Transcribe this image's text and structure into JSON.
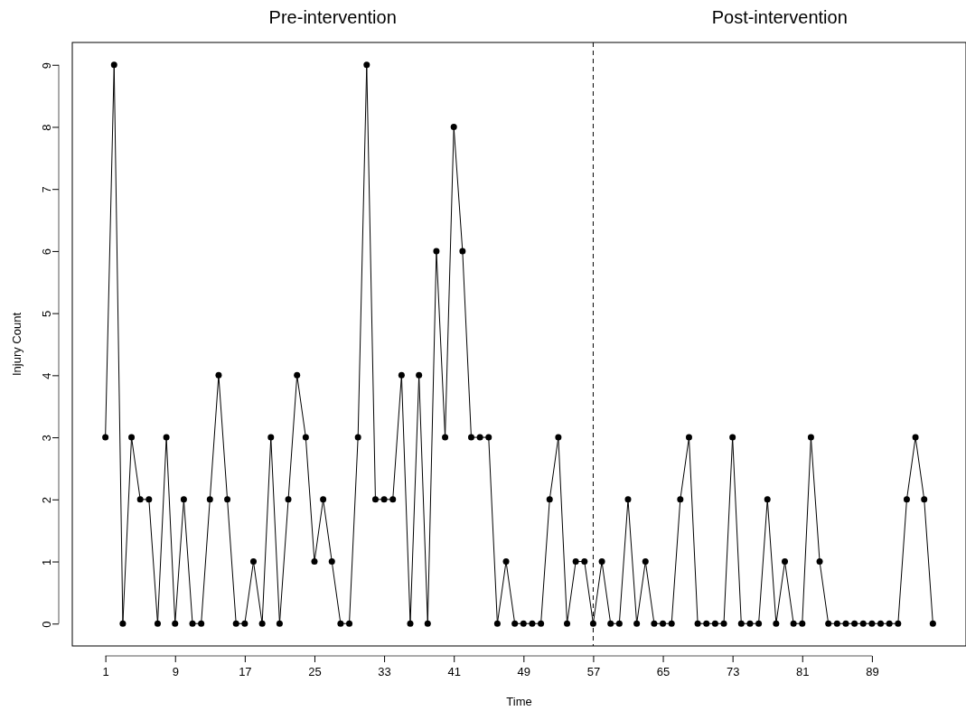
{
  "chart_data": {
    "type": "line",
    "xlabel": "Time",
    "ylabel": "Injury Count",
    "x": [
      1,
      2,
      3,
      4,
      5,
      6,
      7,
      8,
      9,
      10,
      11,
      12,
      13,
      14,
      15,
      16,
      17,
      18,
      19,
      20,
      21,
      22,
      23,
      24,
      25,
      26,
      27,
      28,
      29,
      30,
      31,
      32,
      33,
      34,
      35,
      36,
      37,
      38,
      39,
      40,
      41,
      42,
      43,
      44,
      45,
      46,
      47,
      48,
      49,
      50,
      51,
      52,
      53,
      54,
      55,
      56,
      57,
      58,
      59,
      60,
      61,
      62,
      63,
      64,
      65,
      66,
      67,
      68,
      69,
      70,
      71,
      72,
      73,
      74,
      75,
      76,
      77,
      78,
      79,
      80,
      81,
      82,
      83,
      84,
      85,
      86,
      87,
      88,
      89,
      90,
      91,
      92,
      93,
      94,
      95,
      96
    ],
    "series": [
      {
        "color": "#000000",
        "values": [
          3,
          9,
          0,
          3,
          2,
          2,
          0,
          3,
          0,
          2,
          0,
          0,
          2,
          4,
          2,
          0,
          0,
          1,
          0,
          3,
          0,
          2,
          4,
          3,
          1,
          2,
          1,
          0,
          0,
          3,
          9,
          2,
          2,
          2,
          4,
          0,
          4,
          0,
          6,
          3,
          8,
          6,
          3,
          3,
          3,
          0,
          1,
          0,
          0,
          0,
          0,
          2,
          3,
          0,
          1,
          1,
          0,
          1,
          0,
          0,
          2,
          0,
          1,
          0,
          0,
          0,
          2,
          3,
          0,
          0,
          0,
          0,
          3,
          0,
          0,
          0,
          2,
          0,
          1,
          0,
          0,
          3,
          1,
          0,
          0,
          0,
          0,
          0,
          0,
          0,
          0,
          0,
          2,
          3,
          2,
          0
        ]
      }
    ],
    "marker": "circle",
    "line_style": "solid",
    "grid": false,
    "xlim": [
      -2.8,
      99.8
    ],
    "xticks": [
      1,
      9,
      17,
      25,
      33,
      41,
      49,
      57,
      65,
      73,
      81,
      89
    ],
    "ylim": [
      -0.36,
      9.36
    ],
    "yticks": [
      0,
      1,
      2,
      3,
      4,
      5,
      6,
      7,
      8,
      9
    ],
    "ref_lines": [
      {
        "axis": "x",
        "value": 57,
        "line_style": "dashed",
        "color": "#000000"
      }
    ],
    "annotations": [
      "Pre-intervention",
      "Post-intervention"
    ]
  }
}
